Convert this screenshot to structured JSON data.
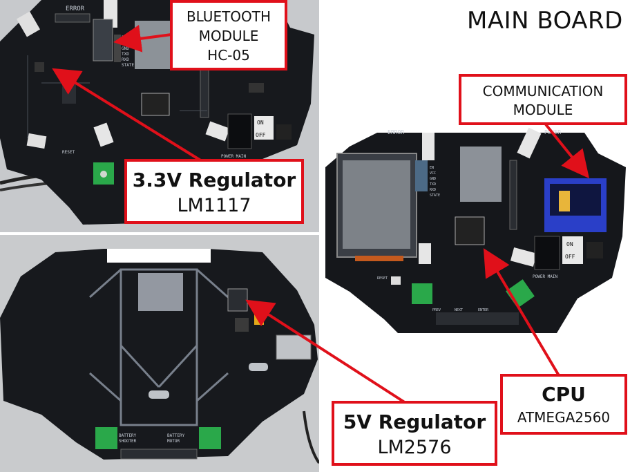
{
  "title": "MAIN BOARD",
  "labels": {
    "bluetooth": {
      "line1": "BLUETOOTH",
      "line2": "MODULE",
      "line3": "HC-05"
    },
    "communication": {
      "line1": "COMMUNICATION",
      "line2": "MODULE"
    },
    "reg33": {
      "line1": "3.3V Regulator",
      "line2": "LM1117"
    },
    "reg5": {
      "line1": "5V Regulator",
      "line2": "LM2576"
    },
    "cpu": {
      "line1": "CPU",
      "line2": "ATMEGA2560"
    }
  },
  "silkscreen": {
    "error": "ERROR",
    "power": "POWER",
    "main": "MAIN",
    "on": "ON",
    "off": "OFF",
    "reset": "RESET",
    "prev": "PREV",
    "next": "NEXT",
    "enter": "ENTER",
    "battery_shooter": "BATTERY SHOOTER",
    "battery_motor": "BATTERY MOTOR",
    "bt_pins": [
      "EN",
      "VCC",
      "GND",
      "TXD",
      "RXD",
      "STATE"
    ]
  },
  "colors": {
    "accent": "#e0101a",
    "pcb": "#15171b",
    "silk": "#c9cfd8",
    "background": "#ffffff"
  }
}
